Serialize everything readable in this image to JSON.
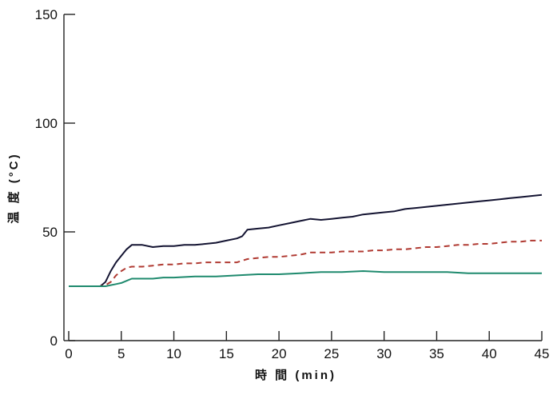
{
  "chart_data": {
    "type": "line",
    "title": "",
    "xlabel": "時 間 (min)",
    "ylabel": "温 度 (°C)",
    "xlim": [
      0,
      45
    ],
    "ylim": [
      0,
      150
    ],
    "x_ticks": [
      0,
      5,
      10,
      15,
      20,
      25,
      30,
      35,
      40,
      45
    ],
    "x_tick_labels": [
      "0",
      "5",
      "10",
      "15",
      "20",
      "25",
      "30",
      "35",
      "40",
      "45"
    ],
    "y_ticks": [
      0,
      50,
      100,
      150
    ],
    "y_tick_labels": [
      "0",
      "50",
      "100",
      "150"
    ],
    "grid": false,
    "legend": "none",
    "series": [
      {
        "color": "#141432",
        "style": "solid",
        "x": [
          0,
          2.5,
          3,
          3.5,
          4,
          4.5,
          5,
          5.5,
          6,
          7,
          8,
          9,
          10,
          11,
          12,
          13,
          14,
          15,
          16,
          16.5,
          17,
          18,
          19,
          20,
          21,
          22,
          23,
          24,
          25,
          26,
          27,
          28,
          29,
          30,
          31,
          32,
          33,
          34,
          35,
          36,
          37,
          38,
          39,
          40,
          41,
          42,
          43,
          44,
          45
        ],
        "values": [
          25,
          25,
          25,
          27,
          32,
          36,
          39,
          42,
          44,
          44,
          43,
          43.5,
          43.5,
          44,
          44,
          44.5,
          45,
          46,
          47,
          48,
          51,
          51.5,
          52,
          53,
          54,
          55,
          56,
          55.5,
          56,
          56.5,
          57,
          58,
          58.5,
          59,
          59.5,
          60.5,
          61,
          61.5,
          62,
          62.5,
          63,
          63.5,
          64,
          64.5,
          65,
          65.5,
          66,
          66.5,
          67
        ]
      },
      {
        "color": "#b03a32",
        "style": "dashed",
        "x": [
          0,
          2.5,
          3,
          3.5,
          4,
          4.5,
          5,
          5.5,
          6,
          7,
          8,
          9,
          10,
          11,
          12,
          13,
          14,
          15,
          16,
          17,
          18,
          19,
          20,
          21,
          22,
          23,
          24,
          25,
          26,
          27,
          28,
          29,
          30,
          31,
          32,
          33,
          34,
          35,
          36,
          37,
          38,
          39,
          40,
          41,
          42,
          43,
          44,
          45
        ],
        "values": [
          25,
          25,
          25,
          25.5,
          27,
          30,
          32,
          33.5,
          34,
          34,
          34.5,
          35,
          35,
          35.5,
          35.5,
          36,
          36,
          36,
          36,
          37.5,
          38,
          38.5,
          38.5,
          39,
          39.5,
          40.5,
          40.5,
          40.5,
          41,
          41,
          41,
          41.5,
          41.5,
          42,
          42,
          42.5,
          43,
          43,
          43.5,
          44,
          44,
          44.5,
          44.5,
          45,
          45.5,
          45.5,
          46,
          46
        ]
      },
      {
        "color": "#1f8a6e",
        "style": "solid",
        "x": [
          0,
          2.5,
          3,
          3.5,
          4,
          4.5,
          5,
          5.5,
          6,
          7,
          8,
          9,
          10,
          12,
          14,
          16,
          18,
          20,
          22,
          24,
          26,
          28,
          30,
          32,
          34,
          36,
          38,
          40,
          42,
          44,
          45
        ],
        "values": [
          25,
          25,
          25,
          25,
          25.5,
          26,
          26.5,
          27.5,
          28.5,
          28.5,
          28.5,
          29,
          29,
          29.5,
          29.5,
          30,
          30.5,
          30.5,
          31,
          31.5,
          31.5,
          32,
          31.5,
          31.5,
          31.5,
          31.5,
          31,
          31,
          31,
          31,
          31
        ]
      }
    ]
  }
}
